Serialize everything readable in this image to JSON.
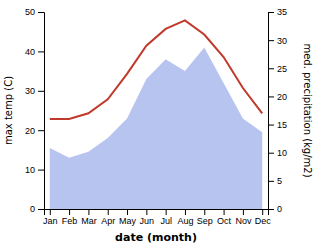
{
  "chart_data": {
    "type": "line",
    "xlabel": "date (month)",
    "ylabel": "max temp (C)",
    "y2label": "med. precipitation (kg/m2)",
    "categories": [
      "Jan",
      "Feb",
      "Mar",
      "Apr",
      "May",
      "Jun",
      "Jul",
      "Aug",
      "Sep",
      "Oct",
      "Nov",
      "Dec"
    ],
    "series": [
      {
        "type": "area",
        "color": "#b8c4f0",
        "values": [
          15.5,
          13.0,
          14.5,
          18.0,
          23.0,
          33.0,
          38.0,
          35.0,
          41.0,
          32.0,
          23.0,
          19.5
        ]
      },
      {
        "type": "line",
        "color": "#c0392b",
        "axis": "y2",
        "values": [
          16.0,
          16.0,
          17.0,
          19.5,
          24.0,
          29.0,
          32.0,
          33.5,
          31.0,
          27.0,
          21.5,
          17.0
        ]
      }
    ],
    "ylim": [
      0,
      50
    ],
    "yticks": [
      0,
      10,
      20,
      30,
      40,
      50
    ],
    "y2lim": [
      0,
      35
    ],
    "y2ticks": [
      0,
      5,
      10,
      15,
      20,
      25,
      30,
      35
    ]
  }
}
